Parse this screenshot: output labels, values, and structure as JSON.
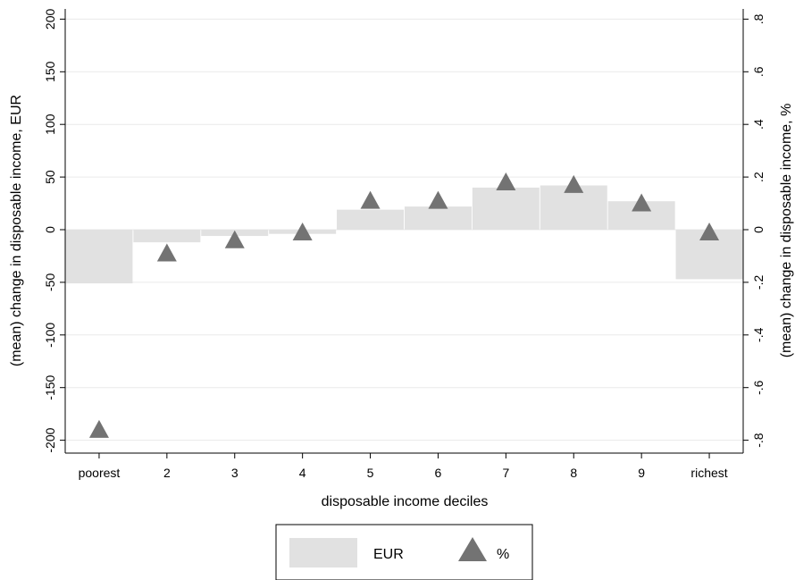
{
  "chart_data": {
    "type": "bar",
    "categories": [
      "poorest",
      "2",
      "3",
      "4",
      "5",
      "6",
      "7",
      "8",
      "9",
      "richest"
    ],
    "series": [
      {
        "name": "EUR",
        "type": "bar",
        "axis": "left",
        "values": [
          -51,
          -12,
          -6,
          -4,
          19,
          22,
          40,
          42,
          27,
          -47
        ]
      },
      {
        "name": "%",
        "type": "scatter",
        "marker": "triangle",
        "axis": "right",
        "values": [
          -0.76,
          -0.09,
          -0.04,
          -0.01,
          0.11,
          0.11,
          0.18,
          0.17,
          0.1,
          -0.01
        ]
      }
    ],
    "xlabel": "disposable income deciles",
    "ylabel": "(mean) change in disposable income, EUR",
    "ylabel_right": "(mean) change in disposable income, %",
    "ylim": [
      -210,
      210
    ],
    "ylim_right": [
      -0.84,
      0.84
    ],
    "yticks": [
      "200",
      "150",
      "100",
      "50",
      "0",
      "-50",
      "-100",
      "-150",
      "-200"
    ],
    "yticks_right": [
      ".8",
      ".6",
      ".4",
      ".2",
      "0",
      "-.2",
      "-.4",
      "-.6",
      "-.8"
    ],
    "grid": true,
    "legend_position": "bottom",
    "colors": {
      "bar": "#e1e1e1",
      "marker": "#737373",
      "grid": "#eaeaea",
      "axis": "#000000"
    }
  }
}
